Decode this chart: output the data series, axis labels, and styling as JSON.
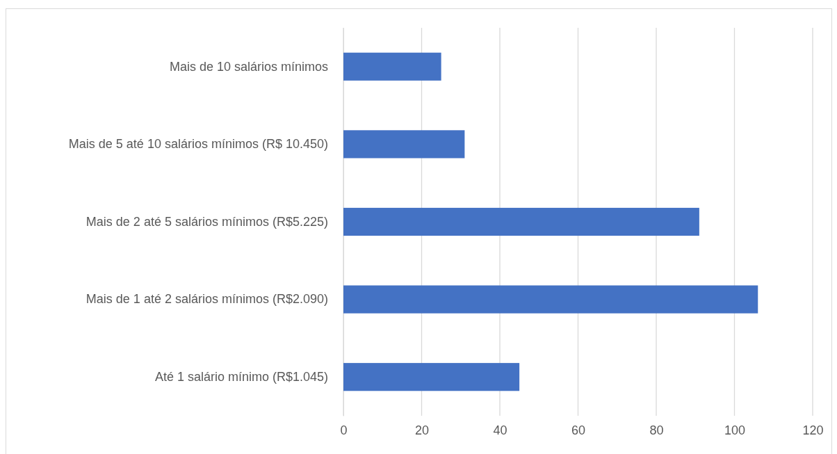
{
  "chart_data": {
    "type": "bar",
    "orientation": "horizontal",
    "categories": [
      "Mais de 10 salários mínimos",
      "Mais de 5 até 10 salários mínimos (R$ 10.450)",
      "Mais de 2 até 5 salários mínimos (R$5.225)",
      "Mais de 1 até 2 salários mínimos (R$2.090)",
      "Até 1 salário mínimo (R$1.045)"
    ],
    "values": [
      25,
      31,
      91,
      106,
      45
    ],
    "color": "#4472c4",
    "xlim": [
      0,
      120
    ],
    "xticks": [
      0,
      20,
      40,
      60,
      80,
      100,
      120
    ],
    "grid": "x"
  }
}
